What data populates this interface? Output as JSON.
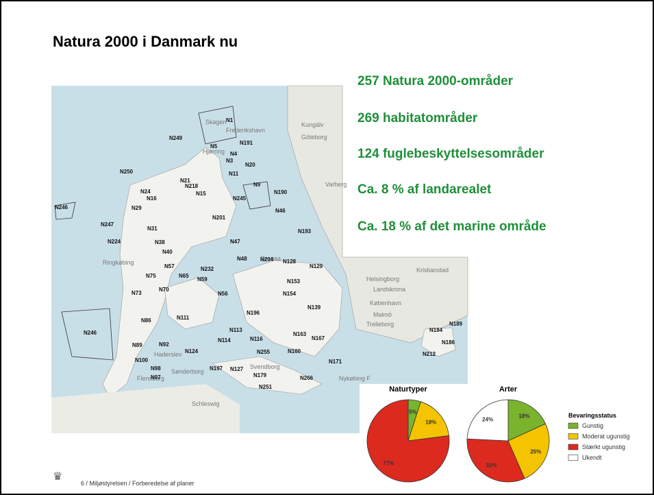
{
  "header": {
    "title": "Natura 2000 i Danmark nu"
  },
  "facts": [
    "257 Natura 2000-områder",
    "269 habitatområder",
    "124 fuglebeskyttelsesområder",
    "Ca. 8 % af landarealet",
    "Ca. 18 % af det marine område"
  ],
  "map": {
    "places": [
      "Skagen",
      "Göteborg",
      "Frederikshavn",
      "Hjørring",
      "Varberg",
      "Kungälv",
      "Ringkøbing",
      "Helsingborg",
      "Landskrona",
      "København",
      "Malmö",
      "Trelleborg",
      "Kristianstad",
      "Haderslev",
      "Svendborg",
      "Nykøbing F",
      "Schleswig",
      "Flensburg",
      "Sønderborg",
      "Grenaa"
    ],
    "labels": [
      "N1",
      "N5",
      "N249",
      "N191",
      "N4",
      "N3",
      "N11",
      "N20",
      "N9",
      "N250",
      "N21",
      "N218",
      "N15",
      "N190",
      "N246",
      "N24",
      "N16",
      "N245",
      "N46",
      "N247",
      "N31",
      "N29",
      "N201",
      "N193",
      "N224",
      "N38",
      "N47",
      "N40",
      "N48",
      "N204",
      "N128",
      "N129",
      "N57",
      "N232",
      "N59",
      "N153",
      "N75",
      "N65",
      "N154",
      "N73",
      "N70",
      "N56",
      "N139",
      "N86",
      "N111",
      "N196",
      "N246",
      "N184",
      "N189",
      "N186",
      "N89",
      "N113",
      "N116",
      "N163",
      "N167",
      "N98",
      "N124",
      "N255",
      "N160",
      "N171",
      "N212",
      "N100",
      "N97",
      "N197",
      "N179",
      "N266",
      "N251",
      "N127",
      "N92",
      "N114"
    ]
  },
  "chart_data": [
    {
      "type": "pie",
      "title": "Naturtyper",
      "values": [
        5,
        18,
        77
      ],
      "value_labels": [
        "5%",
        "18%",
        "77%"
      ],
      "colors": [
        "#7ab32e",
        "#f5c400",
        "#dc2a1f"
      ]
    },
    {
      "type": "pie",
      "title": "Arter",
      "legend_title": "Bevaringsstatus",
      "categories": [
        "Gunstig",
        "Moderat ugunstig",
        "Stærkt ugunstig",
        "Ukendt"
      ],
      "values": [
        18,
        25,
        32,
        24
      ],
      "value_labels": [
        "18%",
        "25%",
        "32%",
        "24%"
      ],
      "colors": [
        "#7ab32e",
        "#f5c400",
        "#dc2a1f",
        "#ffffff"
      ]
    }
  ],
  "footer": {
    "text": "6 / Miljøstyrelsen / Forberedelse af planer"
  }
}
